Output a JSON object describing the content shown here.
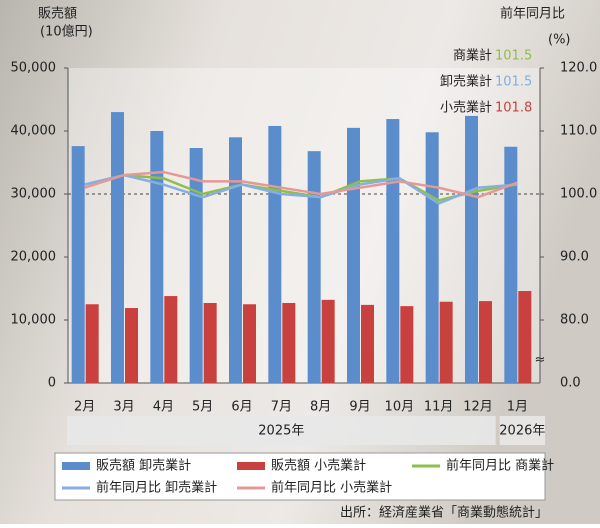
{
  "chart_data": {
    "type": "bar_line",
    "y_axis_label": [
      "販売額",
      "(10億円)"
    ],
    "y2_axis_label": [
      "前年同月比",
      "(%)"
    ],
    "categories": [
      "2月",
      "3月",
      "4月",
      "5月",
      "6月",
      "7月",
      "8月",
      "9月",
      "10月",
      "11月",
      "12月",
      "1月"
    ],
    "year_groups": [
      {
        "label": "2025年",
        "from": 0,
        "to": 10
      },
      {
        "label": "2026年",
        "from": 11,
        "to": 11
      }
    ],
    "series": [
      {
        "name": "販売額 卸売業計",
        "type": "bar",
        "color": "#5b8ccc",
        "values": [
          37600,
          43000,
          40000,
          37300,
          39000,
          40800,
          36800,
          40500,
          41900,
          39800,
          42400,
          37500
        ]
      },
      {
        "name": "販売額 小売業計",
        "type": "bar",
        "color": "#c9413f",
        "values": [
          12500,
          11900,
          13800,
          12700,
          12500,
          12700,
          13200,
          12400,
          12200,
          12900,
          13000,
          14600
        ]
      },
      {
        "name": "前年同月比 商業計",
        "type": "line",
        "axis": "y2",
        "color": "#8fbf4a",
        "values": [
          101.5,
          103,
          102.5,
          100,
          101.5,
          100.5,
          99.5,
          102,
          102.5,
          99,
          100.5,
          101.5
        ]
      },
      {
        "name": "前年同月比 卸売業計",
        "type": "line",
        "axis": "y2",
        "color": "#86aee0",
        "values": [
          101.5,
          103,
          101.5,
          99.5,
          101.5,
          100,
          99.5,
          101.5,
          102.5,
          98.5,
          101,
          101.5
        ]
      },
      {
        "name": "前年同月比 小売業計",
        "type": "line",
        "axis": "y2",
        "color": "#e39a96",
        "values": [
          101,
          103,
          103.5,
          102,
          102,
          101,
          100,
          101,
          102,
          101,
          99.5,
          101.8
        ]
      }
    ],
    "ylim": [
      0,
      50000
    ],
    "yticks": [
      0,
      {
        "value": 10000,
        "label": "10,000"
      },
      {
        "value": 20000,
        "label": "20,000"
      },
      {
        "value": 30000,
        "label": "30,000"
      },
      {
        "value": 40000,
        "label": "40,000"
      },
      {
        "value": 50000,
        "label": "50,000"
      }
    ],
    "y2lim": [
      70,
      120
    ],
    "y2ticks": [
      {
        "value": 80,
        "label": "80.0"
      },
      {
        "value": 90,
        "label": "90.0"
      },
      {
        "value": 100,
        "label": "100.0"
      },
      {
        "value": 110,
        "label": "110.0"
      },
      {
        "value": 120,
        "label": "120.0"
      }
    ],
    "y2_break_symbol": "≈",
    "y2_break_label": "0.0",
    "reference_line": 100,
    "annotations": [
      {
        "label": "商業計",
        "value": 101.5,
        "color": "#8fbf4a"
      },
      {
        "label": "卸売業計",
        "value": 101.5,
        "color": "#86aee0"
      },
      {
        "label": "小売業計",
        "value": 101.8,
        "color": "#c9413f"
      }
    ],
    "source": "出所：経済産業省「商業動態統計」"
  }
}
